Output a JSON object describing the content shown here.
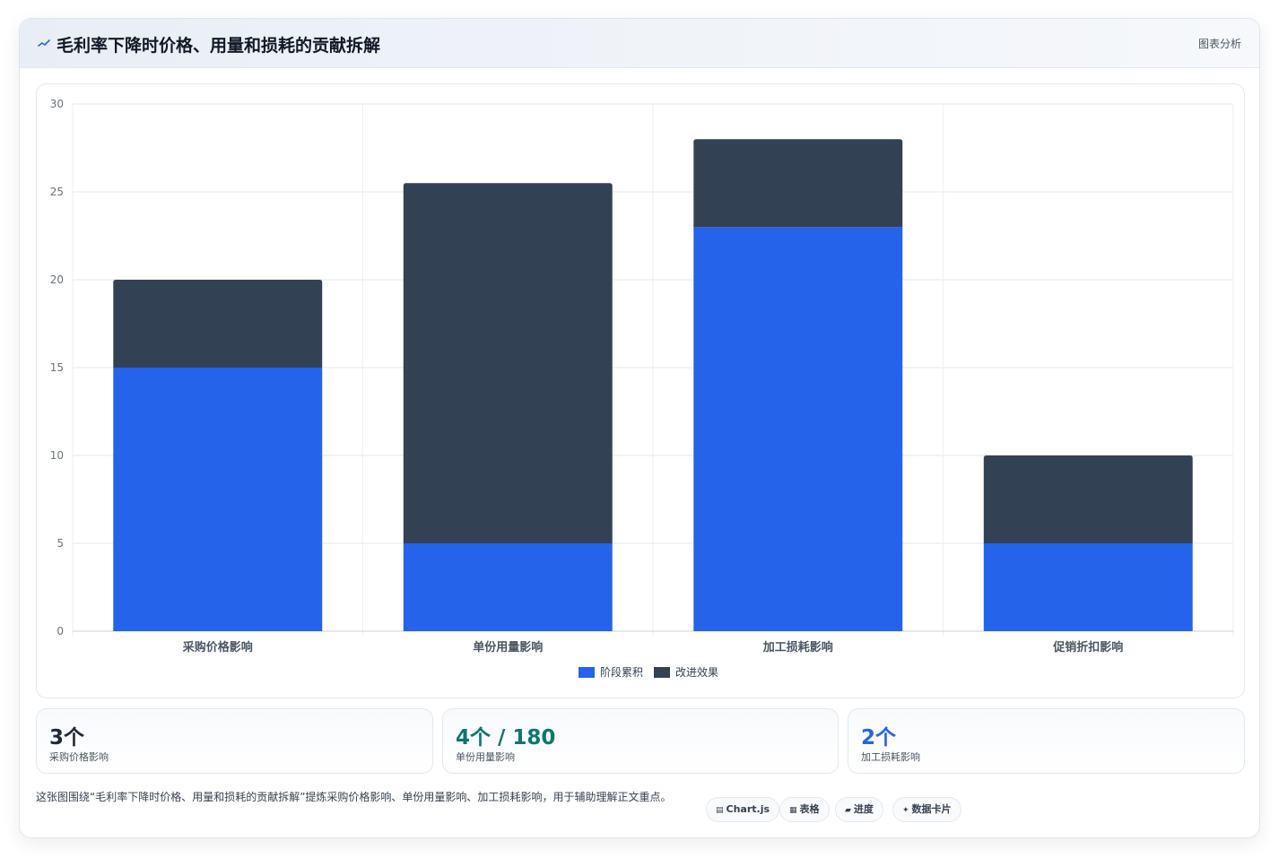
{
  "header": {
    "title": "毛利率下降时价格、用量和损耗的贡献拆解",
    "link_label": "图表分析",
    "icon": "trend-line-icon"
  },
  "chart_data": {
    "type": "bar",
    "stacked": true,
    "categories": [
      "采购价格影响",
      "单份用量影响",
      "加工损耗影响",
      "促销折扣影响"
    ],
    "series": [
      {
        "name": "阶段累积",
        "values": [
          15,
          5,
          23,
          5
        ],
        "color": "#2563eb"
      },
      {
        "name": "改进效果",
        "values": [
          5,
          20.5,
          5,
          5
        ],
        "color": "#334155"
      }
    ],
    "ylim": [
      0,
      30
    ],
    "yticks": [
      0,
      5,
      10,
      15,
      20,
      25,
      30
    ],
    "grid": true,
    "legend_position": "bottom"
  },
  "stats": [
    {
      "value": "3个",
      "label": "采购价格影响",
      "color": "#1f2937"
    },
    {
      "value": "4个 / 180",
      "label": "单份用量影响",
      "color": "#0f766e"
    },
    {
      "value": "2个",
      "label": "加工损耗影响",
      "color": "#2563eb"
    }
  ],
  "note": "这张图围绕“毛利率下降时价格、用量和损耗的贡献拆解”提炼采购价格影响、单份用量影响、加工损耗影响，用于辅助理解正文重点。",
  "tags": [
    {
      "icon": "▤",
      "label": "Chart.js",
      "icon_name": "chart-icon"
    },
    {
      "icon": "▦",
      "label": "表格",
      "icon_name": "table-icon"
    },
    {
      "icon": "▰",
      "label": "进度",
      "icon_name": "progress-icon"
    },
    {
      "icon": "✦",
      "label": "数据卡片",
      "icon_name": "sparkle-icon"
    }
  ]
}
